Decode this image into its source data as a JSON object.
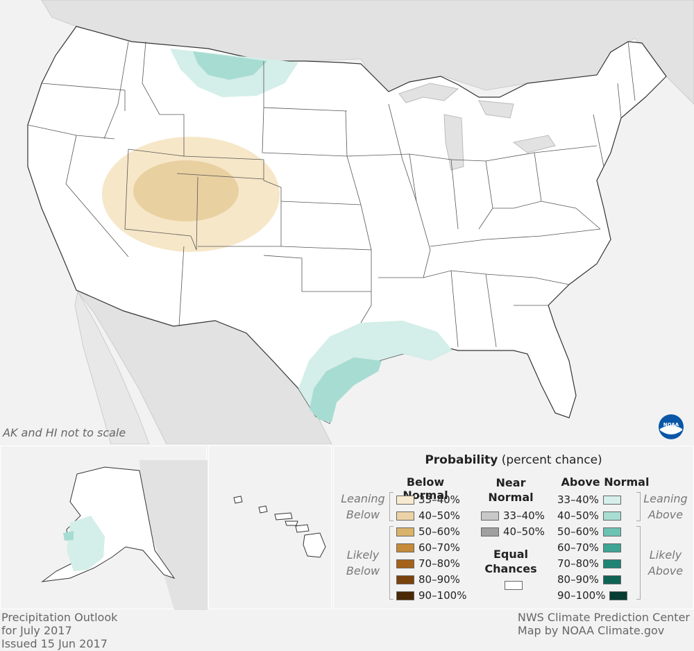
{
  "map": {
    "scale_note": "AK and HI not to scale",
    "logo_text": "NOAA",
    "colors": {
      "background": "#f2f2f2",
      "land_neighbor": "#e2e2e2",
      "us_land": "#ffffff",
      "below_33_40": "#f5e4c2",
      "below_40_50": "#e8cf9f",
      "above_33_40": "#d4eee9",
      "above_40_50": "#a7dcd2"
    }
  },
  "legend": {
    "title_bold": "Probability",
    "title_rest": " (percent chance)",
    "below": {
      "header": "Below Normal",
      "leaning_label": [
        "Leaning",
        "Below"
      ],
      "likely_label": [
        "Likely",
        "Below"
      ],
      "items": [
        {
          "label": "33–40%",
          "color": "#f7ead0"
        },
        {
          "label": "40–50%",
          "color": "#ecd3a6"
        },
        {
          "label": "50–60%",
          "color": "#d9b36a"
        },
        {
          "label": "60–70%",
          "color": "#c58b3a"
        },
        {
          "label": "70–80%",
          "color": "#a5621b"
        },
        {
          "label": "80–90%",
          "color": "#7b430c"
        },
        {
          "label": "90–100%",
          "color": "#4a2805"
        }
      ]
    },
    "near": {
      "header": [
        "Near",
        "Normal"
      ],
      "items": [
        {
          "label": "33–40%",
          "color": "#c8c8c8"
        },
        {
          "label": "40–50%",
          "color": "#a0a0a0"
        }
      ],
      "equal_header": [
        "Equal",
        "Chances"
      ],
      "equal_color": "#ffffff"
    },
    "above": {
      "header": "Above Normal",
      "leaning_label": [
        "Leaning",
        "Above"
      ],
      "likely_label": [
        "Likely",
        "Above"
      ],
      "items": [
        {
          "label": "33–40%",
          "color": "#d6efea"
        },
        {
          "label": "40–50%",
          "color": "#a8ddd3"
        },
        {
          "label": "50–60%",
          "color": "#6cc3b3"
        },
        {
          "label": "60–70%",
          "color": "#3ea594"
        },
        {
          "label": "70–80%",
          "color": "#1f8474"
        },
        {
          "label": "80–90%",
          "color": "#0f6354"
        },
        {
          "label": "90–100%",
          "color": "#073d33"
        }
      ]
    }
  },
  "footer": {
    "left": [
      "Precipitation Outlook",
      "for July 2017",
      "Issued 15 Jun 2017"
    ],
    "right": [
      "NWS Climate Prediction Center",
      "Map by NOAA Climate.gov"
    ]
  }
}
